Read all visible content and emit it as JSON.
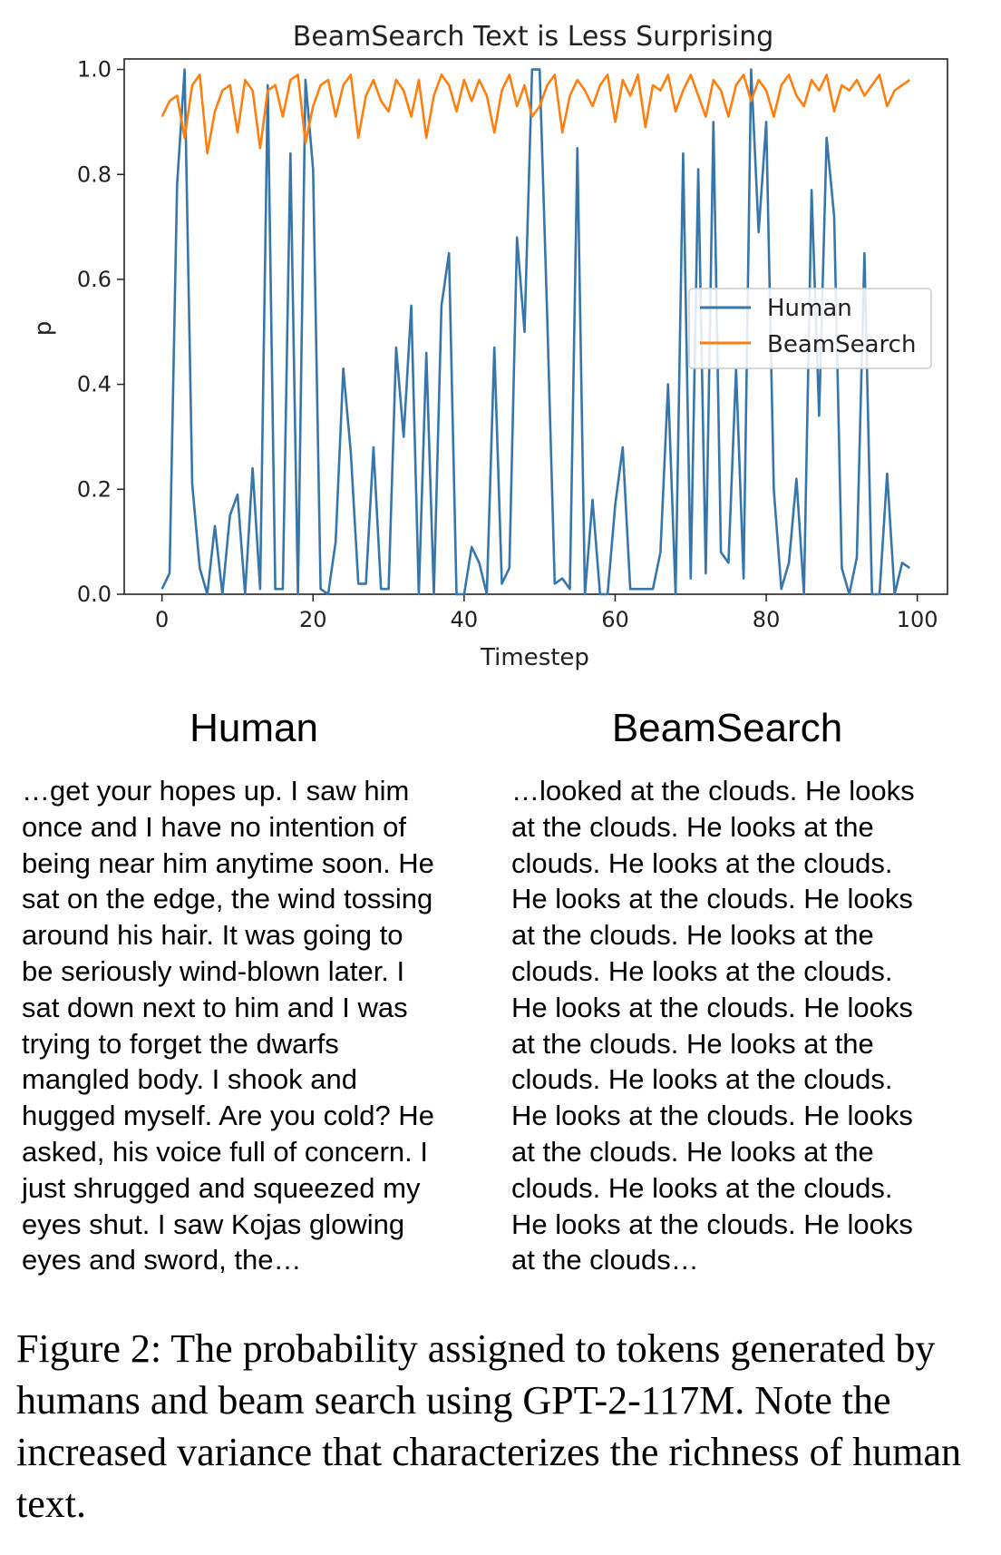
{
  "chart_data": {
    "type": "line",
    "title": "BeamSearch Text is Less Surprising",
    "xlabel": "Timestep",
    "ylabel": "p",
    "xlim": [
      -5,
      104
    ],
    "ylim": [
      0,
      1.02
    ],
    "xticks": [
      "0",
      "20",
      "40",
      "60",
      "80",
      "100"
    ],
    "yticks": [
      "0.0",
      "0.2",
      "0.4",
      "0.6",
      "0.8",
      "1.0"
    ],
    "legend_position": "center-right",
    "series": [
      {
        "name": "Human",
        "color": "#3776ab",
        "x": [
          0,
          1,
          2,
          3,
          4,
          5,
          6,
          7,
          8,
          9,
          10,
          11,
          12,
          13,
          14,
          15,
          16,
          17,
          18,
          19,
          20,
          21,
          22,
          23,
          24,
          25,
          26,
          27,
          28,
          29,
          30,
          31,
          32,
          33,
          34,
          35,
          36,
          37,
          38,
          39,
          40,
          41,
          42,
          43,
          44,
          45,
          46,
          47,
          48,
          49,
          50,
          51,
          52,
          53,
          54,
          55,
          56,
          57,
          58,
          59,
          60,
          61,
          62,
          63,
          64,
          65,
          66,
          67,
          68,
          69,
          70,
          71,
          72,
          73,
          74,
          75,
          76,
          77,
          78,
          79,
          80,
          81,
          82,
          83,
          84,
          85,
          86,
          87,
          88,
          89,
          90,
          91,
          92,
          93,
          94,
          95,
          96,
          97,
          98,
          99
        ],
        "y": [
          0.01,
          0.04,
          0.78,
          1.0,
          0.21,
          0.05,
          0.0,
          0.13,
          0.0,
          0.15,
          0.19,
          0.0,
          0.24,
          0.01,
          0.97,
          0.01,
          0.01,
          0.84,
          0.0,
          0.98,
          0.81,
          0.01,
          0.0,
          0.1,
          0.43,
          0.27,
          0.02,
          0.02,
          0.28,
          0.01,
          0.01,
          0.47,
          0.3,
          0.55,
          0.0,
          0.46,
          0.0,
          0.55,
          0.65,
          0.0,
          0.0,
          0.09,
          0.06,
          0.0,
          0.47,
          0.02,
          0.05,
          0.68,
          0.5,
          1.0,
          1.0,
          0.53,
          0.02,
          0.03,
          0.01,
          0.85,
          0.0,
          0.18,
          0.0,
          0.0,
          0.17,
          0.28,
          0.01,
          0.01,
          0.01,
          0.01,
          0.08,
          0.4,
          0.0,
          0.84,
          0.03,
          0.81,
          0.04,
          0.9,
          0.08,
          0.06,
          0.43,
          0.03,
          1.0,
          0.69,
          0.9,
          0.2,
          0.01,
          0.06,
          0.22,
          0.0,
          0.77,
          0.34,
          0.87,
          0.72,
          0.05,
          0.0,
          0.07,
          0.65,
          0.0,
          0.0,
          0.23,
          0.0,
          0.06,
          0.05
        ]
      },
      {
        "name": "BeamSearch",
        "color": "#ff7f0e",
        "x": [
          0,
          1,
          2,
          3,
          4,
          5,
          6,
          7,
          8,
          9,
          10,
          11,
          12,
          13,
          14,
          15,
          16,
          17,
          18,
          19,
          20,
          21,
          22,
          23,
          24,
          25,
          26,
          27,
          28,
          29,
          30,
          31,
          32,
          33,
          34,
          35,
          36,
          37,
          38,
          39,
          40,
          41,
          42,
          43,
          44,
          45,
          46,
          47,
          48,
          49,
          50,
          51,
          52,
          53,
          54,
          55,
          56,
          57,
          58,
          59,
          60,
          61,
          62,
          63,
          64,
          65,
          66,
          67,
          68,
          69,
          70,
          71,
          72,
          73,
          74,
          75,
          76,
          77,
          78,
          79,
          80,
          81,
          82,
          83,
          84,
          85,
          86,
          87,
          88,
          89,
          90,
          91,
          92,
          93,
          94,
          95,
          96,
          97,
          98,
          99
        ],
        "y": [
          0.91,
          0.94,
          0.95,
          0.87,
          0.97,
          0.99,
          0.84,
          0.92,
          0.96,
          0.97,
          0.88,
          0.98,
          0.96,
          0.85,
          0.96,
          0.97,
          0.91,
          0.98,
          0.99,
          0.86,
          0.93,
          0.97,
          0.98,
          0.91,
          0.97,
          0.99,
          0.87,
          0.95,
          0.98,
          0.94,
          0.92,
          0.98,
          0.96,
          0.91,
          0.98,
          0.87,
          0.95,
          0.99,
          0.97,
          0.92,
          0.98,
          0.94,
          0.98,
          0.95,
          0.88,
          0.96,
          0.99,
          0.93,
          0.97,
          0.91,
          0.93,
          0.97,
          0.99,
          0.88,
          0.95,
          0.98,
          0.96,
          0.93,
          0.97,
          0.99,
          0.9,
          0.98,
          0.95,
          0.99,
          0.89,
          0.97,
          0.96,
          0.99,
          0.92,
          0.96,
          0.99,
          0.95,
          0.91,
          0.98,
          0.96,
          0.91,
          0.97,
          0.99,
          0.94,
          0.98,
          0.96,
          0.91,
          0.97,
          0.99,
          0.95,
          0.93,
          0.98,
          0.96,
          0.99,
          0.92,
          0.97,
          0.96,
          0.98,
          0.95,
          0.97,
          0.99,
          0.93,
          0.96,
          0.97,
          0.98
        ]
      }
    ]
  },
  "columns": {
    "human": {
      "title": "Human",
      "text": "…get your hopes up. I saw him\nonce and I have no intention of\nbeing near him anytime soon. He\nsat on the edge, the wind tossing\naround his hair. It was going to\nbe seriously wind-blown later. I\nsat down next to him and I was\ntrying to forget the dwarfs\nmangled body. I shook and\nhugged myself. Are you cold? He\nasked, his voice full of concern. I\njust shrugged and squeezed my\neyes shut. I saw Kojas glowing\neyes and sword, the…"
    },
    "beam": {
      "title": "BeamSearch",
      "text": "…looked at the clouds. He looks\nat the clouds. He looks at the\nclouds. He looks at the clouds.\nHe looks at the clouds. He looks\nat the clouds. He looks at the\nclouds. He looks at the clouds.\nHe looks at the clouds. He looks\nat the clouds. He looks at the\nclouds. He looks at the clouds.\nHe looks at the clouds. He looks\nat the clouds. He looks at the\nclouds. He looks at the clouds.\nHe looks at the clouds. He looks\nat the clouds…"
    }
  },
  "caption": "Figure 2: The probability assigned to tokens generated by humans and beam search using GPT-2-117M. Note the increased variance that characterizes the richness of human text."
}
